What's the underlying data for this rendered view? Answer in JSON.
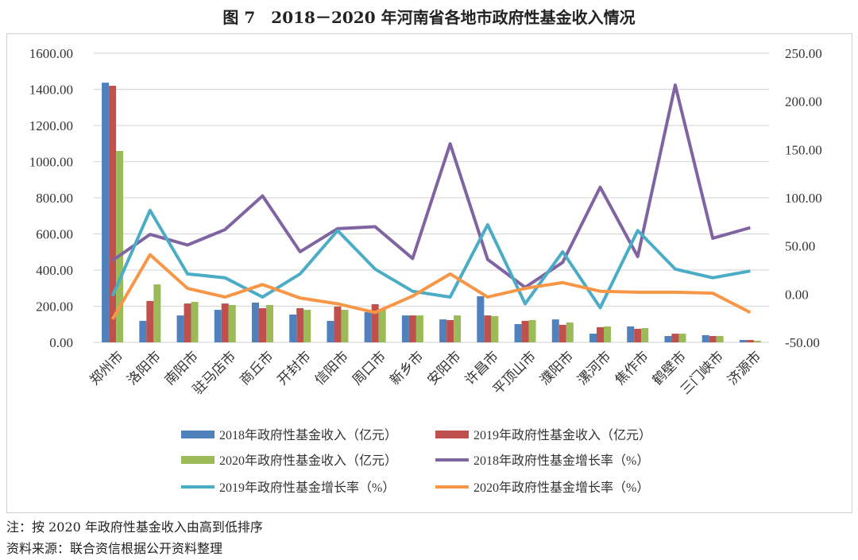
{
  "title": "图 7　2018－2020 年河南省各地市政府性基金收入情况",
  "notes": [
    "注：按 2020 年政府性基金收入由高到低排序",
    "资料来源：联合资信根据公开资料整理"
  ],
  "chart_data": {
    "type": "bar+line",
    "categories": [
      "郑州市",
      "洛阳市",
      "南阳市",
      "驻马店市",
      "商丘市",
      "开封市",
      "信阳市",
      "周口市",
      "新乡市",
      "安阳市",
      "许昌市",
      "平顶山市",
      "濮阳市",
      "漯河市",
      "焦作市",
      "鹤壁市",
      "三门峡市",
      "济源市"
    ],
    "left_axis": {
      "ylim": [
        0,
        1600
      ],
      "ticks": [
        "0.00",
        "200.00",
        "400.00",
        "600.00",
        "800.00",
        "1000.00",
        "1200.00",
        "1400.00",
        "1600.00"
      ]
    },
    "right_axis": {
      "ylim": [
        -50,
        250
      ],
      "ticks": [
        "-50.00",
        "0.00",
        "50.00",
        "100.00",
        "150.00",
        "200.00",
        "250.00"
      ]
    },
    "grid": true,
    "legend_position": "bottom",
    "bar_series": [
      {
        "name": "2018年政府性基金收入（亿元）",
        "color": "#4f81bd",
        "values": [
          1437,
          119,
          149,
          180,
          220,
          154,
          119,
          167,
          149,
          127,
          255,
          101,
          127,
          48,
          88,
          35,
          40,
          13
        ]
      },
      {
        "name": "2019年政府性基金收入（亿元）",
        "color": "#c0504d",
        "values": [
          1420,
          229,
          215,
          215,
          189,
          189,
          198,
          211,
          149,
          123,
          149,
          119,
          97,
          84,
          75,
          48,
          35,
          13
        ]
      },
      {
        "name": "2020年政府性基金收入（亿元）",
        "color": "#9bbb59",
        "values": [
          1059,
          321,
          224,
          207,
          207,
          180,
          180,
          180,
          149,
          149,
          145,
          123,
          110,
          88,
          79,
          48,
          35,
          9
        ]
      }
    ],
    "line_series": [
      {
        "name": "2018年政府性基金增长率（%）",
        "color": "#8064a2",
        "values": [
          35,
          62,
          51,
          67,
          102,
          44,
          68,
          70,
          37,
          156,
          36,
          7,
          33,
          111,
          39,
          217,
          58,
          69
        ]
      },
      {
        "name": "2019年政府性基金增长率（%）",
        "color": "#4bacc6",
        "values": [
          -2,
          87,
          21,
          17,
          -3,
          21,
          66,
          26,
          3,
          -3,
          72,
          -10,
          44,
          -14,
          66,
          26,
          17,
          24
        ]
      },
      {
        "name": "2020年政府性基金增长率（%）",
        "color": "#f79646",
        "values": [
          -26,
          41,
          6,
          -3,
          10,
          -4,
          -10,
          -19,
          -2,
          21,
          -3,
          6,
          12,
          3,
          2,
          2,
          1,
          -19
        ]
      }
    ]
  }
}
